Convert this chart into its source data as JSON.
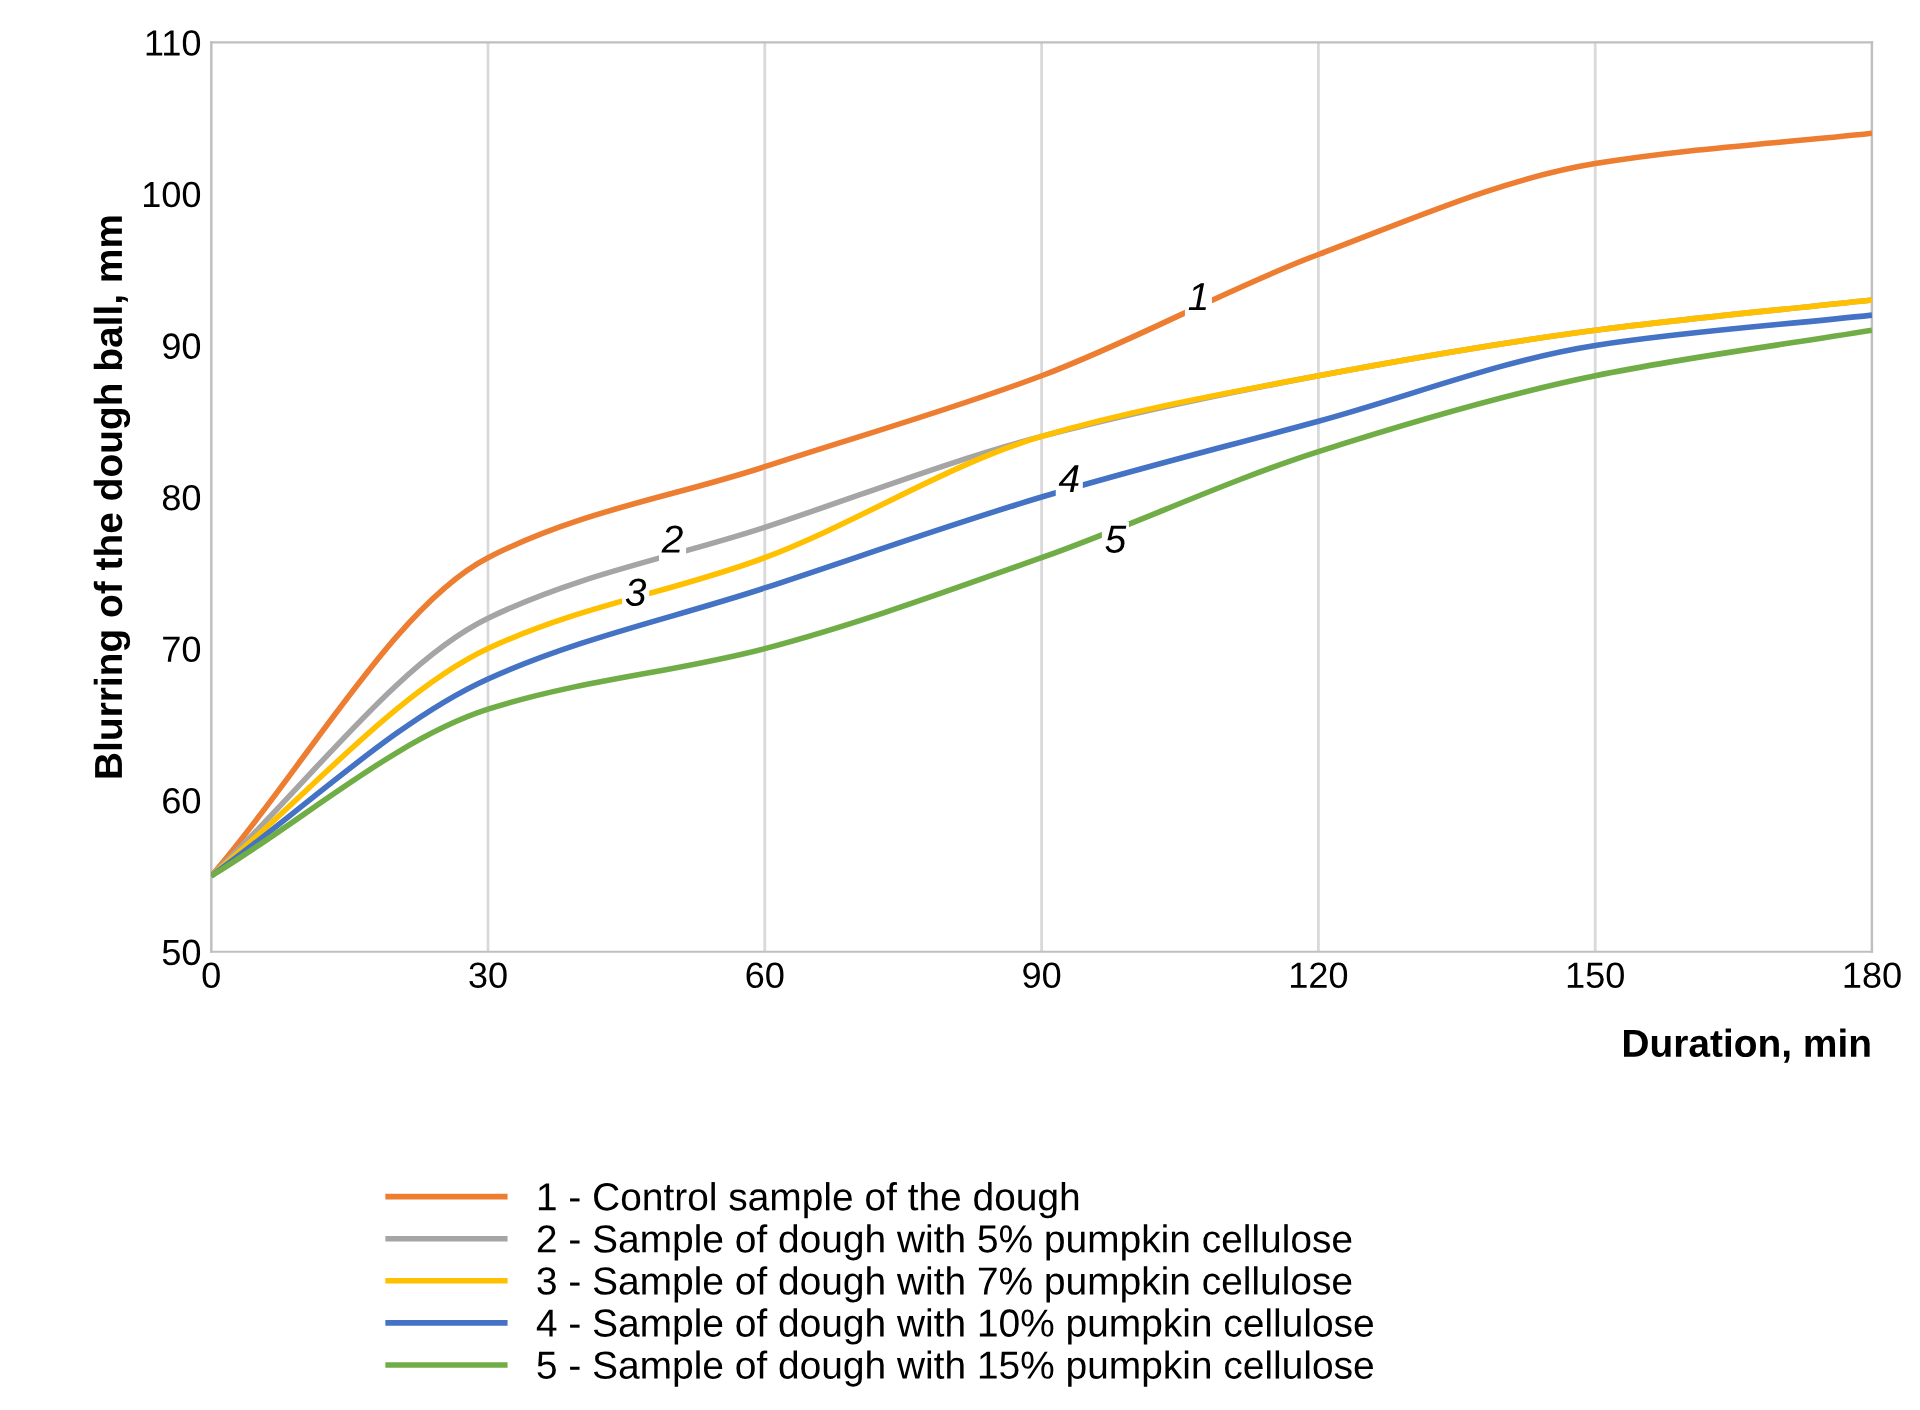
{
  "chart_data": {
    "type": "line",
    "xlabel": "Duration, min",
    "ylabel": "Blurring of the dough ball, mm",
    "x": [
      0,
      30,
      60,
      90,
      120,
      150,
      180
    ],
    "series": [
      {
        "name": "1 - Control sample of the dough",
        "color": "#ed7d31",
        "values": [
          55,
          76,
          82,
          88,
          96,
          102,
          104
        ]
      },
      {
        "name": "2 - Sample of dough with 5% pumpkin cellulose",
        "color": "#a5a5a5",
        "values": [
          55,
          72,
          78,
          84,
          88,
          91,
          93
        ]
      },
      {
        "name": "3 - Sample of dough with 7% pumpkin cellulose",
        "color": "#ffc000",
        "values": [
          55,
          70,
          76,
          84,
          88,
          91,
          93
        ]
      },
      {
        "name": "4 - Sample of dough with 10% pumpkin cellulose",
        "color": "#4472c4",
        "values": [
          55,
          68,
          74,
          80,
          85,
          90,
          92
        ]
      },
      {
        "name": "5 - Sample of dough with 15% pumpkin cellulose",
        "color": "#70ad47",
        "values": [
          55,
          66,
          70,
          76,
          83,
          88,
          91
        ]
      }
    ],
    "annotations": [
      {
        "text": "1",
        "x": 107,
        "y": 93
      },
      {
        "text": "2",
        "x": 50,
        "y": 77
      },
      {
        "text": "3",
        "x": 46,
        "y": 73.5
      },
      {
        "text": "4",
        "x": 93,
        "y": 81
      },
      {
        "text": "5",
        "x": 98,
        "y": 77
      }
    ],
    "xlim": [
      0,
      180
    ],
    "ylim": [
      50,
      110
    ],
    "xticks": [
      0,
      30,
      60,
      90,
      120,
      150,
      180
    ],
    "yticks": [
      50,
      60,
      70,
      80,
      90,
      100,
      110
    ],
    "grid": "x",
    "legend": "bottom",
    "marker": "none",
    "line_style": "solid"
  }
}
